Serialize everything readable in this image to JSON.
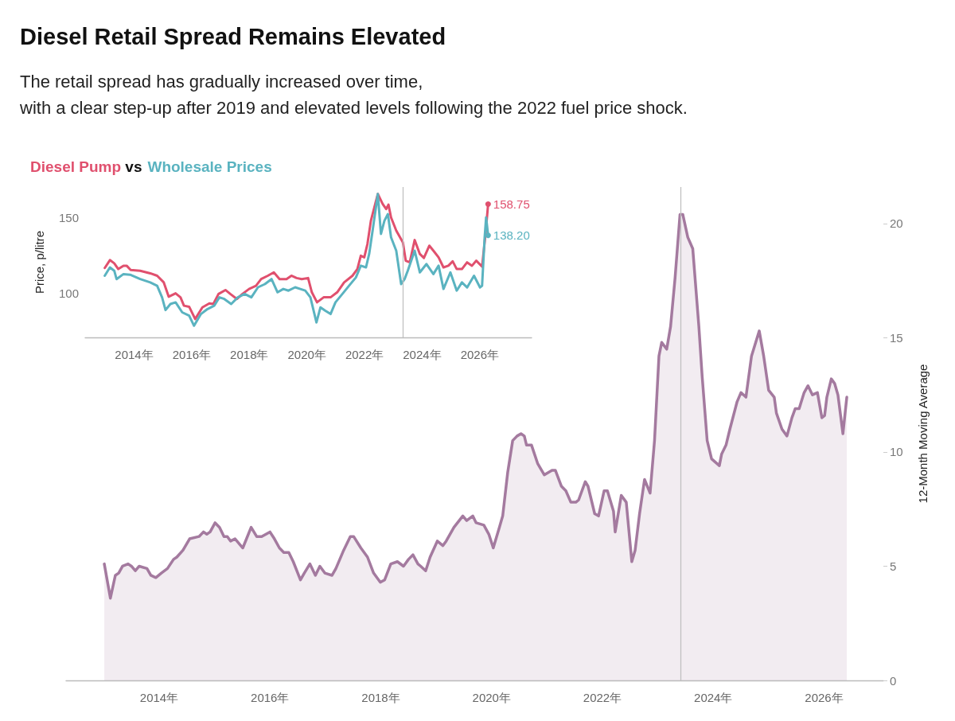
{
  "chart_data": [
    {
      "type": "area",
      "title": "Diesel Retail Spread Remains Elevated",
      "subtitle": "The retail spread has gradually increased over time,\nwith a clear step-up after 2019 and elevated levels following the 2022 fuel price shock.",
      "ylabel": "12-Month Moving Average",
      "xlim": [
        2012.32,
        2027.07
      ],
      "xticks": [
        {
          "value": 2014,
          "label": "2014年"
        },
        {
          "value": 2016,
          "label": "2016年"
        },
        {
          "value": 2018,
          "label": "2018年"
        },
        {
          "value": 2020,
          "label": "2020年"
        },
        {
          "value": 2022,
          "label": "2022年"
        },
        {
          "value": 2024,
          "label": "2024年"
        },
        {
          "value": 2026,
          "label": "2026年"
        }
      ],
      "ylim": [
        0,
        21.6
      ],
      "yticks": [
        0,
        5,
        10,
        15,
        20
      ],
      "ref_lines": [
        {
          "axis": "x",
          "value": 2023.41,
          "color": "#c0c0c0"
        }
      ],
      "x": [
        2013.01,
        2013.12,
        2013.21,
        2013.27,
        2013.34,
        2013.44,
        2013.5,
        2013.57,
        2013.64,
        2013.78,
        2013.85,
        2013.94,
        2014.04,
        2014.15,
        2014.26,
        2014.32,
        2014.43,
        2014.55,
        2014.72,
        2014.8,
        2014.86,
        2014.92,
        2015.01,
        2015.09,
        2015.17,
        2015.23,
        2015.29,
        2015.37,
        2015.51,
        2015.66,
        2015.76,
        2015.85,
        2016.0,
        2016.08,
        2016.17,
        2016.25,
        2016.34,
        2016.42,
        2016.55,
        2016.62,
        2016.72,
        2016.82,
        2016.9,
        2016.99,
        2017.12,
        2017.19,
        2017.33,
        2017.45,
        2017.51,
        2017.64,
        2017.76,
        2017.87,
        2017.99,
        2018.07,
        2018.18,
        2018.3,
        2018.41,
        2018.5,
        2018.58,
        2018.67,
        2018.72,
        2018.81,
        2018.89,
        2019.02,
        2019.12,
        2019.18,
        2019.32,
        2019.48,
        2019.55,
        2019.66,
        2019.72,
        2019.86,
        2019.95,
        2020.03,
        2020.14,
        2020.2,
        2020.29,
        2020.38,
        2020.46,
        2020.53,
        2020.59,
        2020.63,
        2020.72,
        2020.83,
        2020.95,
        2021.09,
        2021.15,
        2021.26,
        2021.34,
        2021.43,
        2021.52,
        2021.57,
        2021.69,
        2021.74,
        2021.86,
        2021.93,
        2022.03,
        2022.09,
        2022.2,
        2022.23,
        2022.34,
        2022.43,
        2022.53,
        2022.59,
        2022.67,
        2022.76,
        2022.86,
        2022.94,
        2023.02,
        2023.07,
        2023.16,
        2023.23,
        2023.31,
        2023.4,
        2023.45,
        2023.54,
        2023.63,
        2023.74,
        2023.8,
        2023.89,
        2023.97,
        2024.11,
        2024.15,
        2024.23,
        2024.3,
        2024.43,
        2024.5,
        2024.59,
        2024.69,
        2024.83,
        2024.91,
        2025.0,
        2025.1,
        2025.14,
        2025.24,
        2025.33,
        2025.42,
        2025.48,
        2025.55,
        2025.64,
        2025.71,
        2025.79,
        2025.88,
        2025.96,
        2026.01,
        2026.05,
        2026.13,
        2026.19,
        2026.25,
        2026.34,
        2026.41
      ],
      "series": [
        {
          "color": "#a47a9f",
          "values": [
            5.1,
            3.6,
            4.6,
            4.7,
            5.0,
            5.1,
            5.0,
            4.8,
            5.0,
            4.9,
            4.6,
            4.5,
            4.7,
            4.9,
            5.3,
            5.4,
            5.7,
            6.2,
            6.3,
            6.5,
            6.4,
            6.5,
            6.9,
            6.7,
            6.3,
            6.3,
            6.1,
            6.2,
            5.8,
            6.7,
            6.3,
            6.3,
            6.5,
            6.2,
            5.8,
            5.6,
            5.6,
            5.2,
            4.4,
            4.7,
            5.1,
            4.6,
            5.0,
            4.7,
            4.6,
            4.9,
            5.7,
            6.3,
            6.3,
            5.8,
            5.4,
            4.7,
            4.3,
            4.4,
            5.1,
            5.2,
            5.0,
            5.3,
            5.5,
            5.1,
            5.0,
            4.8,
            5.4,
            6.1,
            5.9,
            6.1,
            6.7,
            7.2,
            7.0,
            7.2,
            6.9,
            6.8,
            6.4,
            5.8,
            6.7,
            7.2,
            9.1,
            10.5,
            10.7,
            10.8,
            10.7,
            10.3,
            10.3,
            9.5,
            9.0,
            9.2,
            9.2,
            8.5,
            8.3,
            7.8,
            7.8,
            7.9,
            8.7,
            8.5,
            7.3,
            7.2,
            8.3,
            8.3,
            7.4,
            6.5,
            8.1,
            7.8,
            5.2,
            5.7,
            7.3,
            8.8,
            8.2,
            10.5,
            14.2,
            14.8,
            14.5,
            15.5,
            17.6,
            20.4,
            20.4,
            19.4,
            18.9,
            15.5,
            13.3,
            10.5,
            9.7,
            9.4,
            9.9,
            10.3,
            11.0,
            12.2,
            12.6,
            12.4,
            14.2,
            15.3,
            14.2,
            12.7,
            12.4,
            11.7,
            11.0,
            10.7,
            11.5,
            11.9,
            11.9,
            12.6,
            12.9,
            12.5,
            12.6,
            11.5,
            11.6,
            12.4,
            13.2,
            13.0,
            12.5,
            10.8,
            12.4
          ]
        }
      ]
    },
    {
      "type": "line",
      "title": "vs",
      "ylabel": "Price, p/litre",
      "legend": "top left",
      "xlim": [
        2012.3,
        2027.8
      ],
      "xticks": [
        {
          "value": 2014,
          "label": "2014年"
        },
        {
          "value": 2016,
          "label": "2016年"
        },
        {
          "value": 2018,
          "label": "2018年"
        },
        {
          "value": 2020,
          "label": "2020年"
        },
        {
          "value": 2022,
          "label": "2022年"
        },
        {
          "value": 2024,
          "label": "2024年"
        },
        {
          "value": 2026,
          "label": "2026年"
        }
      ],
      "ylim": [
        71,
        170
      ],
      "yticks": [
        100,
        150
      ],
      "ref_lines": [
        {
          "axis": "x",
          "value": 2023.34,
          "color": "#c0c0c0"
        }
      ],
      "series": [
        {
          "name": "Diesel Pump",
          "color": "#e0506e",
          "x": [
            2012.98,
            2013.16,
            2013.31,
            2013.45,
            2013.63,
            2013.74,
            2013.88,
            2014.21,
            2014.56,
            2014.8,
            2015.03,
            2015.2,
            2015.44,
            2015.61,
            2015.73,
            2015.91,
            2016.12,
            2016.37,
            2016.61,
            2016.75,
            2016.93,
            2017.17,
            2017.34,
            2017.57,
            2017.76,
            2017.99,
            2018.23,
            2018.41,
            2018.64,
            2018.85,
            2019.05,
            2019.29,
            2019.46,
            2019.64,
            2019.82,
            2020.04,
            2020.17,
            2020.35,
            2020.58,
            2020.82,
            2021.05,
            2021.29,
            2021.58,
            2021.75,
            2021.87,
            2021.99,
            2022.1,
            2022.22,
            2022.46,
            2022.63,
            2022.75,
            2022.83,
            2022.92,
            2023.1,
            2023.33,
            2023.43,
            2023.57,
            2023.74,
            2023.92,
            2024.06,
            2024.25,
            2024.39,
            2024.57,
            2024.74,
            2024.91,
            2025.06,
            2025.2,
            2025.38,
            2025.56,
            2025.73,
            2025.88,
            2026.08,
            2026.2,
            2026.29
          ],
          "values": [
            116.7,
            121.9,
            119.8,
            116.0,
            118.2,
            118.2,
            115.4,
            114.9,
            113.2,
            111.6,
            107.2,
            97.8,
            100.0,
            97.4,
            91.9,
            91.2,
            83.1,
            90.8,
            93.4,
            93.0,
            99.6,
            102.2,
            99.6,
            96.3,
            99.6,
            102.9,
            105.0,
            109.4,
            111.6,
            113.8,
            109.4,
            109.4,
            111.6,
            110.1,
            109.4,
            110.1,
            100.7,
            94.1,
            97.4,
            97.4,
            100.7,
            107.2,
            111.6,
            116.0,
            124.8,
            123.7,
            132.5,
            147.8,
            165.4,
            158.8,
            155.5,
            158.4,
            150.0,
            141.3,
            133.6,
            121.5,
            120.4,
            135.1,
            125.9,
            123.3,
            131.4,
            128.1,
            123.7,
            117.1,
            118.2,
            121.1,
            116.0,
            116.0,
            120.4,
            118.2,
            121.5,
            117.6,
            139.1,
            158.75
          ],
          "value_labels": [
            null,
            null,
            null,
            null,
            null,
            null,
            null,
            null,
            null,
            null,
            null,
            null,
            null,
            null,
            null,
            null,
            null,
            null,
            null,
            null,
            null,
            null,
            null,
            null,
            null,
            null,
            null,
            null,
            null,
            null,
            null,
            null,
            null,
            null,
            null,
            null,
            null,
            null,
            null,
            null,
            null,
            null,
            null,
            null,
            null,
            null,
            null,
            null,
            null,
            null,
            null,
            null,
            null,
            null,
            null,
            null,
            null,
            null,
            null,
            null,
            null,
            null,
            null,
            null,
            null,
            null,
            null,
            null,
            null,
            null,
            null,
            null,
            null,
            "158.75"
          ]
        },
        {
          "name": "Wholesale Prices",
          "color": "#5ab3c0",
          "x": [
            2012.98,
            2013.16,
            2013.31,
            2013.39,
            2013.63,
            2013.86,
            2014.21,
            2014.56,
            2014.8,
            2014.97,
            2015.09,
            2015.26,
            2015.44,
            2015.67,
            2015.91,
            2016.08,
            2016.32,
            2016.55,
            2016.78,
            2016.96,
            2017.13,
            2017.37,
            2017.6,
            2017.84,
            2018.07,
            2018.3,
            2018.54,
            2018.77,
            2018.98,
            2019.18,
            2019.36,
            2019.59,
            2019.77,
            2019.94,
            2020.12,
            2020.33,
            2020.47,
            2020.64,
            2020.82,
            2020.99,
            2021.23,
            2021.46,
            2021.7,
            2021.87,
            2022.05,
            2022.16,
            2022.28,
            2022.46,
            2022.57,
            2022.69,
            2022.81,
            2022.92,
            2023.1,
            2023.27,
            2023.39,
            2023.5,
            2023.74,
            2023.92,
            2024.15,
            2024.39,
            2024.57,
            2024.74,
            2024.98,
            2025.2,
            2025.38,
            2025.56,
            2025.8,
            2026.01,
            2026.08,
            2026.17,
            2026.22,
            2026.29
          ],
          "values": [
            111.6,
            117.1,
            114.9,
            109.4,
            112.7,
            112.3,
            109.4,
            107.2,
            105.0,
            97.4,
            89.0,
            93.0,
            94.1,
            87.5,
            85.3,
            78.7,
            86.4,
            89.7,
            91.9,
            97.4,
            96.3,
            93.0,
            97.4,
            99.6,
            97.4,
            104.0,
            106.1,
            109.4,
            100.7,
            102.9,
            101.8,
            104.0,
            102.9,
            101.8,
            97.4,
            80.9,
            90.8,
            88.6,
            86.4,
            94.1,
            99.6,
            105.0,
            110.5,
            118.2,
            117.1,
            125.9,
            141.3,
            165.4,
            139.1,
            147.8,
            152.2,
            136.9,
            128.1,
            106.1,
            109.4,
            114.9,
            128.1,
            113.8,
            119.3,
            112.7,
            118.2,
            102.9,
            113.8,
            101.8,
            107.2,
            103.9,
            111.6,
            103.9,
            105.0,
            136.9,
            150.0,
            138.2
          ],
          "value_labels": [
            null,
            null,
            null,
            null,
            null,
            null,
            null,
            null,
            null,
            null,
            null,
            null,
            null,
            null,
            null,
            null,
            null,
            null,
            null,
            null,
            null,
            null,
            null,
            null,
            null,
            null,
            null,
            null,
            null,
            null,
            null,
            null,
            null,
            null,
            null,
            null,
            null,
            null,
            null,
            null,
            null,
            null,
            null,
            null,
            null,
            null,
            null,
            null,
            null,
            null,
            null,
            null,
            null,
            null,
            null,
            null,
            null,
            null,
            null,
            null,
            null,
            null,
            null,
            null,
            null,
            null,
            null,
            null,
            null,
            null,
            null,
            "138.20"
          ]
        }
      ]
    }
  ]
}
